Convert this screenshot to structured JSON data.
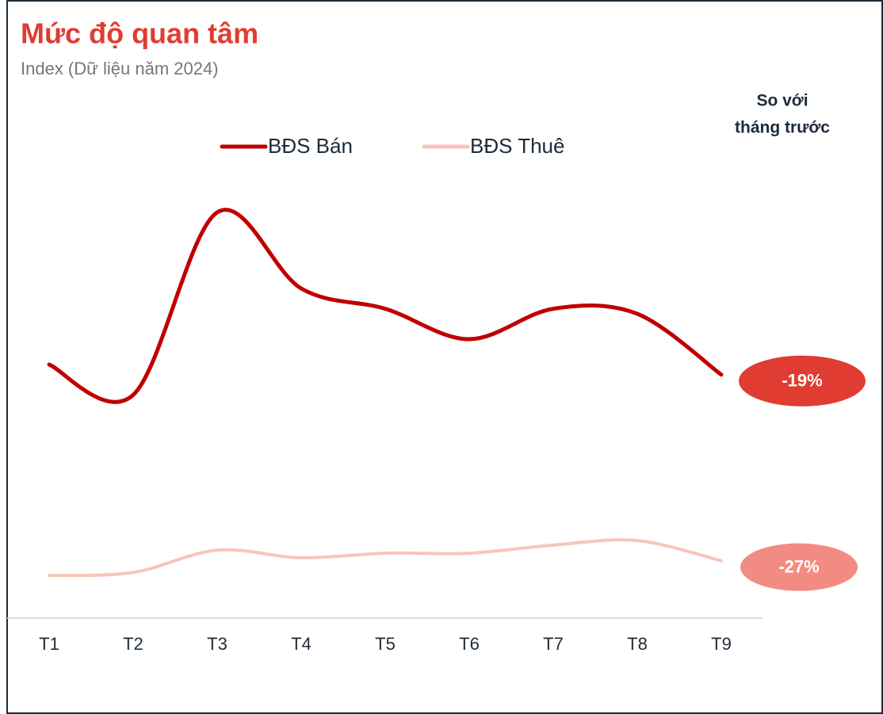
{
  "chart_data": {
    "type": "line",
    "title": "Mức độ quan tâm",
    "subtitle": "Index (Dữ liệu năm 2024)",
    "comparison_header": [
      "So với",
      "tháng trước"
    ],
    "categories": [
      "T1",
      "T2",
      "T3",
      "T4",
      "T5",
      "T6",
      "T7",
      "T8",
      "T9"
    ],
    "ylim": [
      0,
      100
    ],
    "series": [
      {
        "name": "BĐS Bán",
        "color": "#c00000",
        "values": [
          50,
          44,
          80,
          65,
          61,
          55,
          61,
          60,
          48
        ],
        "change": {
          "value": -19,
          "label": "-19%"
        },
        "change_color": "#e03c31"
      },
      {
        "name": "BĐS Thuê",
        "color": "#f8c4bd",
        "values": [
          8.4,
          9,
          13.4,
          11.9,
          12.8,
          12.8,
          14.4,
          15.3,
          11.3
        ],
        "change": {
          "value": -27,
          "label": "-27%"
        },
        "change_color": "#f28b82"
      }
    ]
  }
}
